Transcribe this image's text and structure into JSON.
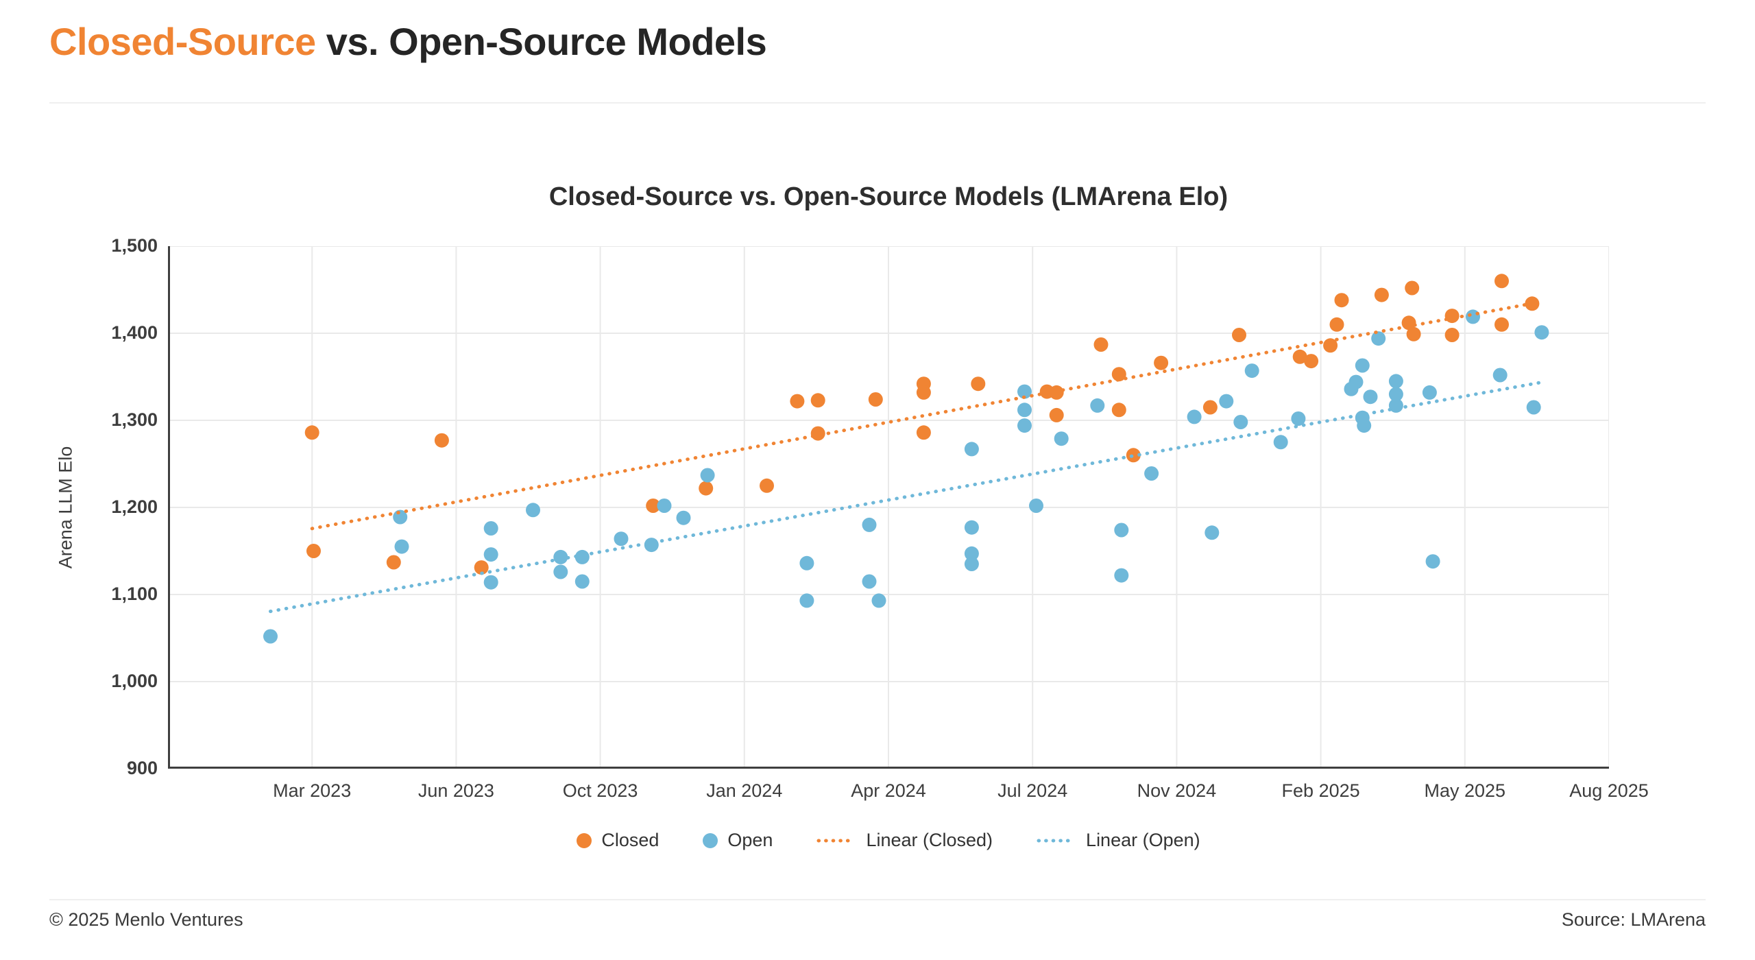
{
  "page": {
    "title_highlight": "Closed-Source",
    "title_rest": " vs. Open-Source Models",
    "footer_left": "© 2025 Menlo Ventures",
    "footer_right": "Source: LMArena"
  },
  "colors": {
    "closed": "#F08433",
    "open": "#6FB8D9",
    "title_accent": "#F08433",
    "grid": "#E9E9E9",
    "axis": "#3F3F3F",
    "text": "#3D3D3D"
  },
  "chart_data": {
    "type": "scatter",
    "title": "Closed-Source vs. Open-Source Models (LMArena Elo)",
    "xlabel": "",
    "ylabel": "Arena LLM Elo",
    "ylim": [
      900,
      1500
    ],
    "yticks": [
      900,
      1000,
      1100,
      1200,
      1300,
      1400,
      1500
    ],
    "xticks": [
      "Mar 2023",
      "Jun 2023",
      "Oct 2023",
      "Jan 2024",
      "Apr 2024",
      "Jul 2024",
      "Nov 2024",
      "Feb 2025",
      "May 2025",
      "Aug 2025"
    ],
    "grid": true,
    "legend_position": "bottom",
    "legend": [
      {
        "type": "dot",
        "series": "Closed",
        "label": "Closed"
      },
      {
        "type": "dot",
        "series": "Open",
        "label": "Open"
      },
      {
        "type": "line",
        "series": "Closed",
        "label": "Linear (Closed)"
      },
      {
        "type": "line",
        "series": "Open",
        "label": "Linear (Open)"
      }
    ],
    "series": [
      {
        "name": "Closed",
        "color_key": "closed",
        "points": [
          [
            "2023-03-01",
            1286
          ],
          [
            "2023-03-02",
            1150
          ],
          [
            "2023-04-22",
            1137
          ],
          [
            "2023-05-22",
            1277
          ],
          [
            "2023-06-22",
            1131
          ],
          [
            "2023-11-04",
            1202
          ],
          [
            "2023-12-07",
            1222
          ],
          [
            "2024-01-15",
            1225
          ],
          [
            "2024-02-04",
            1322
          ],
          [
            "2024-02-17",
            1323
          ],
          [
            "2024-02-17",
            1285
          ],
          [
            "2024-03-23",
            1324
          ],
          [
            "2024-04-23",
            1342
          ],
          [
            "2024-04-23",
            1332
          ],
          [
            "2024-04-23",
            1286
          ],
          [
            "2024-05-27",
            1342
          ],
          [
            "2024-07-13",
            1333
          ],
          [
            "2024-07-21",
            1332
          ],
          [
            "2024-07-21",
            1306
          ],
          [
            "2024-08-28",
            1387
          ],
          [
            "2024-09-13",
            1353
          ],
          [
            "2024-09-13",
            1312
          ],
          [
            "2024-09-25",
            1260
          ],
          [
            "2024-10-18",
            1366
          ],
          [
            "2024-11-22",
            1315
          ],
          [
            "2024-12-10",
            1398
          ],
          [
            "2025-01-18",
            1373
          ],
          [
            "2025-01-25",
            1368
          ],
          [
            "2025-02-07",
            1386
          ],
          [
            "2025-02-11",
            1410
          ],
          [
            "2025-02-14",
            1438
          ],
          [
            "2025-03-09",
            1444
          ],
          [
            "2025-03-26",
            1412
          ],
          [
            "2025-03-28",
            1452
          ],
          [
            "2025-03-29",
            1399
          ],
          [
            "2025-04-23",
            1420
          ],
          [
            "2025-04-23",
            1398
          ],
          [
            "2025-05-24",
            1460
          ],
          [
            "2025-05-24",
            1410
          ],
          [
            "2025-06-13",
            1434
          ]
        ]
      },
      {
        "name": "Open",
        "color_key": "open",
        "points": [
          [
            "2023-02-05",
            1052
          ],
          [
            "2023-04-26",
            1189
          ],
          [
            "2023-04-27",
            1155
          ],
          [
            "2023-06-30",
            1176
          ],
          [
            "2023-06-30",
            1146
          ],
          [
            "2023-06-30",
            1114
          ],
          [
            "2023-08-05",
            1197
          ],
          [
            "2023-08-28",
            1143
          ],
          [
            "2023-08-28",
            1126
          ],
          [
            "2023-09-16",
            1143
          ],
          [
            "2023-09-16",
            1115
          ],
          [
            "2023-10-14",
            1164
          ],
          [
            "2023-11-03",
            1157
          ],
          [
            "2023-11-11",
            1202
          ],
          [
            "2023-11-23",
            1188
          ],
          [
            "2023-12-08",
            1237
          ],
          [
            "2024-02-10",
            1136
          ],
          [
            "2024-02-10",
            1093
          ],
          [
            "2024-03-19",
            1180
          ],
          [
            "2024-03-19",
            1115
          ],
          [
            "2024-03-25",
            1093
          ],
          [
            "2024-05-23",
            1267
          ],
          [
            "2024-05-23",
            1177
          ],
          [
            "2024-05-23",
            1147
          ],
          [
            "2024-05-23",
            1135
          ],
          [
            "2024-06-26",
            1333
          ],
          [
            "2024-06-26",
            1312
          ],
          [
            "2024-06-26",
            1294
          ],
          [
            "2024-07-04",
            1202
          ],
          [
            "2024-07-25",
            1279
          ],
          [
            "2024-08-25",
            1317
          ],
          [
            "2024-09-15",
            1174
          ],
          [
            "2024-09-15",
            1122
          ],
          [
            "2024-10-10",
            1239
          ],
          [
            "2024-11-12",
            1304
          ],
          [
            "2024-11-23",
            1171
          ],
          [
            "2024-12-02",
            1322
          ],
          [
            "2024-12-11",
            1298
          ],
          [
            "2024-12-18",
            1357
          ],
          [
            "2025-01-06",
            1275
          ],
          [
            "2025-01-17",
            1302
          ],
          [
            "2025-02-20",
            1336
          ],
          [
            "2025-02-23",
            1344
          ],
          [
            "2025-02-27",
            1363
          ],
          [
            "2025-02-27",
            1303
          ],
          [
            "2025-02-28",
            1294
          ],
          [
            "2025-03-02",
            1327
          ],
          [
            "2025-03-07",
            1394
          ],
          [
            "2025-03-18",
            1345
          ],
          [
            "2025-03-18",
            1330
          ],
          [
            "2025-03-18",
            1317
          ],
          [
            "2025-04-09",
            1332
          ],
          [
            "2025-04-11",
            1138
          ],
          [
            "2025-05-06",
            1419
          ],
          [
            "2025-05-23",
            1352
          ],
          [
            "2025-06-14",
            1315
          ],
          [
            "2025-06-19",
            1401
          ]
        ]
      }
    ],
    "trendlines": [
      {
        "series": "Closed",
        "label": "Linear (Closed)"
      },
      {
        "series": "Open",
        "label": "Linear (Open)"
      }
    ]
  }
}
